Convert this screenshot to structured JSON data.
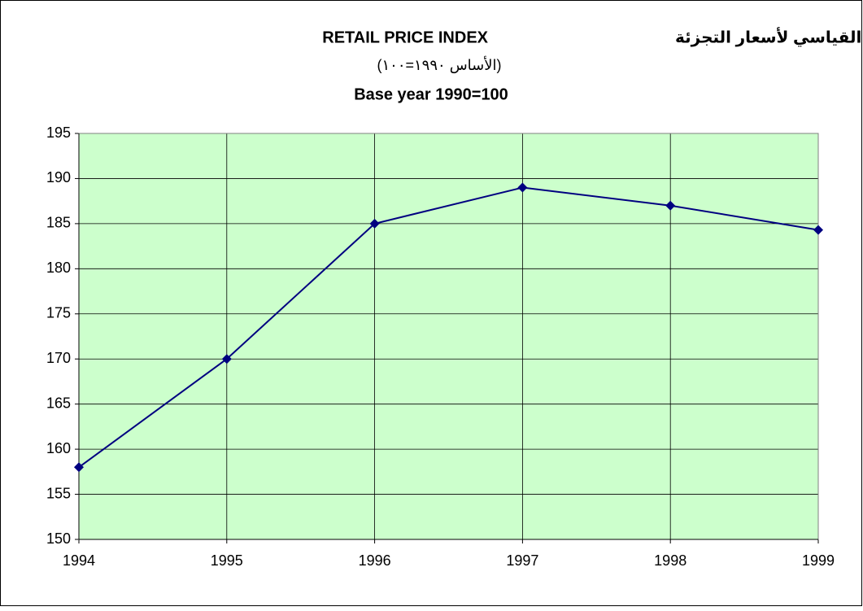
{
  "chart_data": {
    "type": "line",
    "title_arabic": "الرقم القياسي لأسعار التجزئة",
    "title": "RETAIL PRICE INDEX",
    "subtitle_arabic": "(الأساس ١٩٩٠=١٠٠)",
    "subtitle": "Base year 1990=100",
    "x": [
      1994,
      1995,
      1996,
      1997,
      1998,
      1999
    ],
    "series": [
      {
        "name": "Retail price index",
        "color": "#000080",
        "values": [
          158,
          170,
          185,
          189,
          187,
          184.3
        ]
      }
    ],
    "xlim": [
      1994,
      1999
    ],
    "xticks": [
      1994,
      1995,
      1996,
      1997,
      1998,
      1999
    ],
    "ylim": [
      150,
      195
    ],
    "yticks": [
      150,
      155,
      160,
      165,
      170,
      175,
      180,
      185,
      190,
      195
    ],
    "grid": true,
    "plot_background": "#ccffcc"
  }
}
